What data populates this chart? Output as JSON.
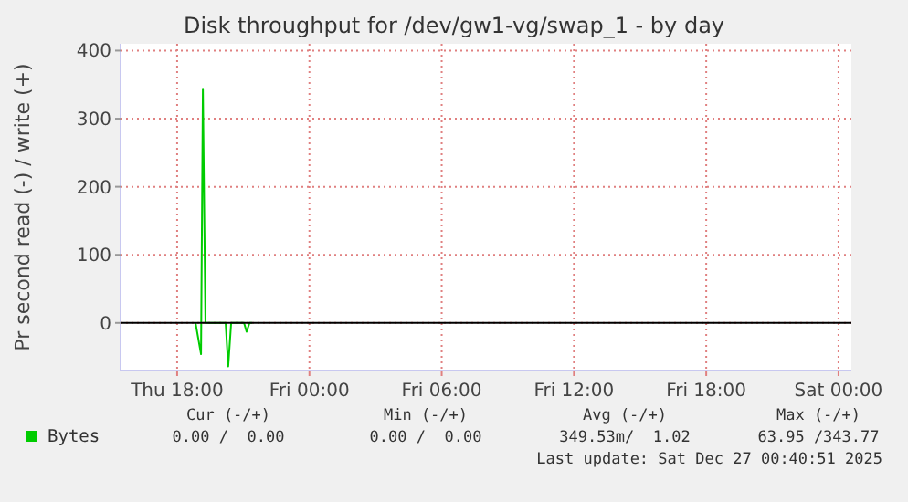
{
  "chart_data": {
    "type": "line",
    "title": "Disk throughput for /dev/gw1-vg/swap_1 - by day",
    "ylabel": "Pr second read (-) / write (+)",
    "x": [
      "2025-12-25T18:50",
      "2025-12-25T19:05",
      "2025-12-25T19:10",
      "2025-12-25T19:17",
      "2025-12-25T20:12",
      "2025-12-25T20:19",
      "2025-12-25T20:27",
      "2025-12-25T21:02",
      "2025-12-25T21:09",
      "2025-12-25T21:17",
      "2025-12-25T21:24"
    ],
    "series": [
      {
        "name": "Bytes",
        "color": "#00cc00",
        "values": [
          0,
          -46,
          344,
          0,
          0,
          -64,
          0,
          0,
          -13,
          0,
          0
        ]
      }
    ],
    "xlim": [
      "2025-12-25T15:26",
      "2025-12-27T00:35"
    ],
    "xticks": [
      {
        "value": "2025-12-25T18:00",
        "label": "Thu 18:00"
      },
      {
        "value": "2025-12-26T00:00",
        "label": "Fri 00:00"
      },
      {
        "value": "2025-12-26T06:00",
        "label": "Fri 06:00"
      },
      {
        "value": "2025-12-26T12:00",
        "label": "Fri 12:00"
      },
      {
        "value": "2025-12-26T18:00",
        "label": "Fri 18:00"
      },
      {
        "value": "2025-12-27T00:00",
        "label": "Sat 00:00"
      }
    ],
    "ylim": [
      -70,
      410
    ],
    "yticks": [
      0,
      100,
      200,
      300,
      400
    ],
    "ref_lines": [
      {
        "axis": "y",
        "value": 0,
        "color": "#000000"
      }
    ],
    "grid": true,
    "legend": "bottom",
    "annotations": [
      "Cur (-/+)",
      "Min (-/+)",
      "Avg (-/+)",
      "Max (-/+)",
      "0.00 /  0.00",
      "0.00 /  0.00",
      "349.53m/  1.02",
      "63.95 /343.77",
      "Last update: Sat Dec 27 00:40:51 2025"
    ]
  }
}
